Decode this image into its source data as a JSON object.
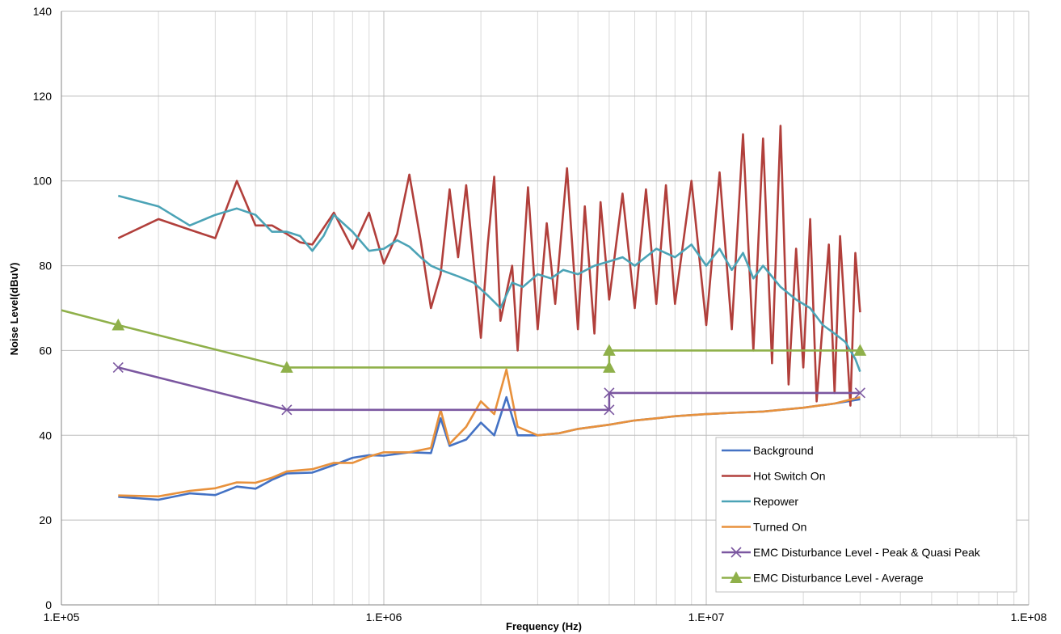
{
  "chart_data": {
    "type": "line",
    "title": "",
    "xlabel": "Frequency (Hz)",
    "ylabel": "Noise Level(dBuV)",
    "x_scale": "log",
    "xlim": [
      100000,
      100000000
    ],
    "ylim": [
      0,
      140
    ],
    "x_ticks": [
      100000,
      1000000,
      10000000,
      100000000
    ],
    "x_tick_labels": [
      "1.E+05",
      "1.E+06",
      "1.E+07",
      "1.E+08"
    ],
    "y_ticks": [
      0,
      20,
      40,
      60,
      80,
      100,
      120,
      140
    ],
    "y_tick_labels": [
      "0",
      "20",
      "40",
      "60",
      "80",
      "100",
      "120",
      "140"
    ],
    "grid": true,
    "legend_position": "bottom-right",
    "series": [
      {
        "name": "Background",
        "color": "#4472C4",
        "marker": "none",
        "x": [
          150000,
          200000,
          250000,
          300000,
          350000,
          400000,
          450000,
          500000,
          600000,
          700000,
          800000,
          900000,
          1000000,
          1200000,
          1400000,
          1500000,
          1600000,
          1800000,
          2000000,
          2200000,
          2400000,
          2600000,
          3000000,
          3500000,
          4000000,
          5000000,
          6000000,
          7000000,
          8000000,
          10000000,
          12000000,
          15000000,
          20000000,
          25000000,
          30000000
        ],
        "y": [
          25.5,
          24.8,
          26.3,
          25.9,
          27.9,
          27.4,
          29.5,
          31,
          31.2,
          33,
          34.7,
          35.3,
          35.2,
          36,
          35.8,
          44,
          37.5,
          39,
          43,
          40,
          49,
          40,
          40,
          40.5,
          41.5,
          42.5,
          43.5,
          44,
          44.5,
          45,
          45.3,
          45.6,
          46.5,
          47.5,
          48.5
        ]
      },
      {
        "name": "Hot Switch On",
        "color": "#B13F3B",
        "marker": "none",
        "x": [
          150000,
          200000,
          250000,
          300000,
          350000,
          400000,
          450000,
          500000,
          550000,
          600000,
          700000,
          800000,
          900000,
          1000000,
          1100000,
          1200000,
          1300000,
          1400000,
          1500000,
          1600000,
          1700000,
          1800000,
          2000000,
          2100000,
          2200000,
          2300000,
          2500000,
          2600000,
          2800000,
          3000000,
          3200000,
          3400000,
          3700000,
          4000000,
          4200000,
          4500000,
          4700000,
          5000000,
          5500000,
          6000000,
          6500000,
          7000000,
          7500000,
          8000000,
          9000000,
          10000000,
          11000000,
          12000000,
          13000000,
          14000000,
          15000000,
          16000000,
          17000000,
          18000000,
          19000000,
          20000000,
          21000000,
          22000000,
          24000000,
          25000000,
          26000000,
          28000000,
          29000000,
          30000000
        ],
        "y": [
          86.5,
          91,
          88.5,
          86.5,
          100,
          89.5,
          89.5,
          87.5,
          85.5,
          85,
          92.5,
          84,
          92.5,
          80.5,
          87.5,
          101.5,
          86,
          70,
          78,
          98,
          82,
          99,
          63,
          85,
          101,
          67,
          80,
          60,
          98.5,
          65,
          90,
          71,
          103,
          65,
          94,
          64,
          95,
          72,
          97,
          70,
          98,
          71,
          99,
          71,
          100,
          66,
          102,
          65,
          111,
          60,
          110,
          57,
          113,
          52,
          84,
          56,
          91,
          48,
          85,
          50,
          87,
          47,
          83,
          69
        ]
      },
      {
        "name": "Repower",
        "color": "#4BA3B6",
        "marker": "none",
        "x": [
          150000,
          200000,
          250000,
          300000,
          350000,
          400000,
          450000,
          500000,
          550000,
          600000,
          650000,
          700000,
          800000,
          900000,
          1000000,
          1100000,
          1200000,
          1300000,
          1400000,
          1500000,
          1700000,
          1900000,
          2100000,
          2300000,
          2500000,
          2700000,
          3000000,
          3300000,
          3600000,
          4000000,
          4500000,
          5000000,
          5500000,
          6000000,
          7000000,
          8000000,
          9000000,
          10000000,
          11000000,
          12000000,
          13000000,
          14000000,
          15000000,
          17000000,
          19000000,
          21000000,
          23000000,
          25000000,
          27000000,
          29000000,
          30000000
        ],
        "y": [
          96.5,
          94,
          89.5,
          92,
          93.5,
          92,
          88,
          88,
          87,
          83.5,
          87,
          92,
          88,
          83.5,
          84,
          86,
          84.5,
          82,
          80,
          79,
          77.5,
          76,
          73,
          70,
          76,
          75,
          78,
          77,
          79,
          78,
          80,
          81,
          82,
          80,
          84,
          82,
          85,
          80,
          84,
          79,
          83,
          77,
          80,
          75,
          72,
          70,
          66,
          64,
          62,
          58,
          55
        ]
      },
      {
        "name": "Turned On",
        "color": "#E8913C",
        "marker": "none",
        "x": [
          150000,
          200000,
          250000,
          300000,
          350000,
          400000,
          450000,
          500000,
          600000,
          700000,
          800000,
          900000,
          1000000,
          1200000,
          1400000,
          1500000,
          1600000,
          1800000,
          2000000,
          2200000,
          2400000,
          2600000,
          3000000,
          3500000,
          4000000,
          5000000,
          6000000,
          7000000,
          8000000,
          10000000,
          12000000,
          15000000,
          20000000,
          25000000,
          30000000
        ],
        "y": [
          25.8,
          25.6,
          26.9,
          27.5,
          28.9,
          28.8,
          30,
          31.5,
          32,
          33.5,
          33.5,
          35,
          36,
          36,
          37,
          46,
          38,
          42,
          48,
          45,
          55.5,
          42,
          40,
          40.5,
          41.5,
          42.5,
          43.5,
          44,
          44.5,
          45,
          45.3,
          45.6,
          46.5,
          47.5,
          49
        ]
      },
      {
        "name": "EMC Disturbance Level - Peak & Quasi Peak",
        "color": "#7B57A0",
        "marker": "x",
        "x": [
          150000,
          500000,
          5000000,
          5000000,
          30000000
        ],
        "y": [
          56,
          46,
          46,
          50,
          50
        ]
      },
      {
        "name": "EMC Disturbance Level - Average",
        "color": "#8FB04A",
        "marker": "triangle",
        "x": [
          100000,
          150000,
          500000,
          5000000,
          5000000,
          30000000
        ],
        "y": [
          69.5,
          66,
          56,
          56,
          60,
          60
        ],
        "marked_x": [
          150000,
          500000,
          5000000,
          5000000,
          30000000
        ]
      }
    ]
  }
}
